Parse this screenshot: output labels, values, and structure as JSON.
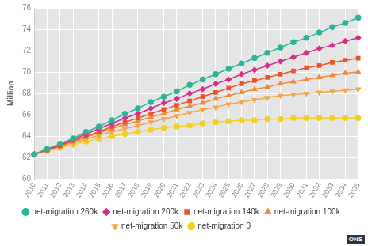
{
  "chart_data": {
    "type": "line",
    "y_label": "Million",
    "source": "ONS",
    "categories": [
      "2010",
      "2011",
      "2012",
      "2013",
      "2014",
      "2015",
      "2016",
      "2017",
      "2018",
      "2019",
      "2020",
      "2021",
      "2022",
      "2023",
      "2024",
      "2025",
      "2026",
      "2027",
      "2028",
      "2029",
      "2030",
      "2031",
      "2032",
      "2033",
      "2034",
      "2035"
    ],
    "series": [
      {
        "name": "net-migration 260k",
        "color": "#2bb59a",
        "marker": "circle",
        "values": [
          62.3,
          62.8,
          63.3,
          63.8,
          64.4,
          64.9,
          65.5,
          66.1,
          66.6,
          67.2,
          67.7,
          68.2,
          68.8,
          69.3,
          69.8,
          70.3,
          70.8,
          71.3,
          71.8,
          72.3,
          72.8,
          73.2,
          73.7,
          74.2,
          74.6,
          75.1
        ]
      },
      {
        "name": "net-migration 200k",
        "color": "#d62d8b",
        "marker": "diamond",
        "values": [
          62.3,
          62.8,
          63.2,
          63.7,
          64.2,
          64.7,
          65.2,
          65.7,
          66.1,
          66.6,
          67.1,
          67.5,
          68.0,
          68.4,
          68.9,
          69.3,
          69.8,
          70.2,
          70.6,
          71.0,
          71.4,
          71.8,
          72.2,
          72.5,
          72.9,
          73.2
        ]
      },
      {
        "name": "net-migration 140k",
        "color": "#e8552b",
        "marker": "square",
        "values": [
          62.3,
          62.7,
          63.1,
          63.6,
          64.0,
          64.4,
          64.9,
          65.3,
          65.7,
          66.1,
          66.5,
          66.9,
          67.3,
          67.7,
          68.1,
          68.5,
          68.9,
          69.2,
          69.5,
          69.8,
          70.1,
          70.4,
          70.6,
          70.9,
          71.1,
          71.3
        ]
      },
      {
        "name": "net-migration 100k",
        "color": "#f08a3a",
        "marker": "triangle",
        "values": [
          62.3,
          62.7,
          63.1,
          63.5,
          63.9,
          64.3,
          64.7,
          65.1,
          65.4,
          65.8,
          66.1,
          66.5,
          66.8,
          67.1,
          67.5,
          67.8,
          68.1,
          68.4,
          68.6,
          68.9,
          69.1,
          69.3,
          69.5,
          69.7,
          69.9,
          70.0
        ]
      },
      {
        "name": "net-migration 50k",
        "color": "#f5a54a",
        "marker": "triangle-down",
        "values": [
          62.3,
          62.7,
          63.0,
          63.4,
          63.7,
          64.1,
          64.4,
          64.7,
          65.0,
          65.3,
          65.6,
          65.9,
          66.2,
          66.5,
          66.7,
          67.0,
          67.2,
          67.4,
          67.6,
          67.8,
          67.9,
          68.0,
          68.1,
          68.2,
          68.3,
          68.4
        ]
      },
      {
        "name": "net-migration 0",
        "color": "#f2d024",
        "marker": "circle",
        "values": [
          62.3,
          62.6,
          62.9,
          63.2,
          63.5,
          63.8,
          64.0,
          64.2,
          64.4,
          64.6,
          64.8,
          64.9,
          65.0,
          65.2,
          65.3,
          65.4,
          65.5,
          65.5,
          65.6,
          65.6,
          65.7,
          65.7,
          65.7,
          65.7,
          65.7,
          65.7
        ]
      }
    ],
    "ylim": [
      60,
      76
    ],
    "yticks": [
      60,
      62,
      64,
      66,
      68,
      70,
      72,
      74,
      76
    ],
    "grid": true,
    "legend": "bottom"
  }
}
